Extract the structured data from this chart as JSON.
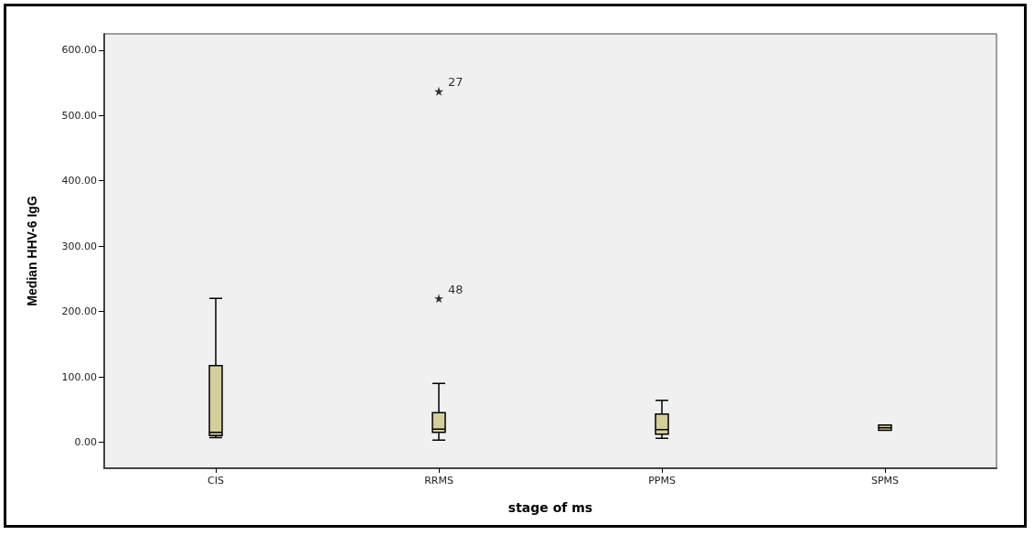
{
  "chart_data": {
    "type": "box",
    "xlabel": "stage of ms",
    "ylabel": "Median HHV-6 IgG",
    "categories": [
      "CIS",
      "RRMS",
      "PPMS",
      "SPMS"
    ],
    "boxes": [
      {
        "low": 7,
        "q1": 10,
        "median": 15,
        "q3": 117,
        "high": 220
      },
      {
        "low": 3,
        "q1": 15,
        "median": 20,
        "q3": 45,
        "high": 90,
        "outliers": [
          220,
          537
        ]
      },
      {
        "low": 6,
        "q1": 12,
        "median": 19,
        "q3": 43,
        "high": 64
      },
      {
        "low": 18,
        "q1": 18,
        "median": 22,
        "q3": 26,
        "high": 26
      }
    ],
    "color": "#d4cf9a",
    "marker": "star",
    "annotations": [
      "48",
      "27"
    ],
    "ylim": [
      -40,
      625
    ],
    "yticks": [
      {
        "value": 0,
        "label": "0.00"
      },
      {
        "value": 100,
        "label": "100.00"
      },
      {
        "value": 200,
        "label": "200.00"
      },
      {
        "value": 300,
        "label": "300.00"
      },
      {
        "value": 400,
        "label": "400.00"
      },
      {
        "value": 500,
        "label": "500.00"
      },
      {
        "value": 600,
        "label": "600.00"
      }
    ],
    "grid": false
  }
}
